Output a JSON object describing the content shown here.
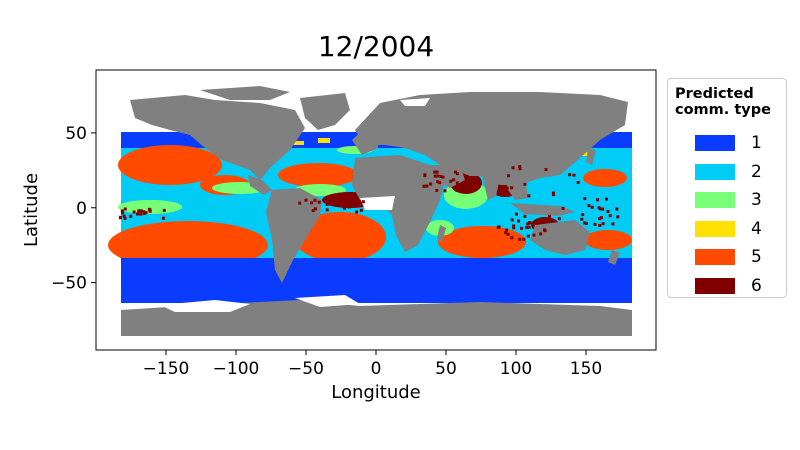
{
  "title": "12/2004",
  "xlabel": "Longitude",
  "ylabel": "Latitude",
  "x_ticks": [
    "−150",
    "−100",
    "−50",
    "0",
    "50",
    "100",
    "150"
  ],
  "y_ticks": [
    "50",
    "0",
    "−50"
  ],
  "legend": {
    "title": "Predicted\ncomm. type",
    "items": [
      {
        "label": "1",
        "color": "#0a3cff"
      },
      {
        "label": "2",
        "color": "#00ccf5"
      },
      {
        "label": "3",
        "color": "#77ff77"
      },
      {
        "label": "4",
        "color": "#ffe000"
      },
      {
        "label": "5",
        "color": "#ff4a00"
      },
      {
        "label": "6",
        "color": "#800000"
      }
    ]
  },
  "land_color": "#808080",
  "chart_data": {
    "type": "heatmap",
    "title": "12/2004",
    "xlabel": "Longitude",
    "ylabel": "Latitude",
    "xlim": [
      -200,
      200
    ],
    "ylim": [
      -95,
      92
    ],
    "x_tick_values": [
      -150,
      -100,
      -50,
      0,
      50,
      100,
      150
    ],
    "y_tick_values": [
      50,
      0,
      -50
    ],
    "legend_placement": "outside-right",
    "categories": [
      "1",
      "2",
      "3",
      "4",
      "5",
      "6"
    ]
  }
}
